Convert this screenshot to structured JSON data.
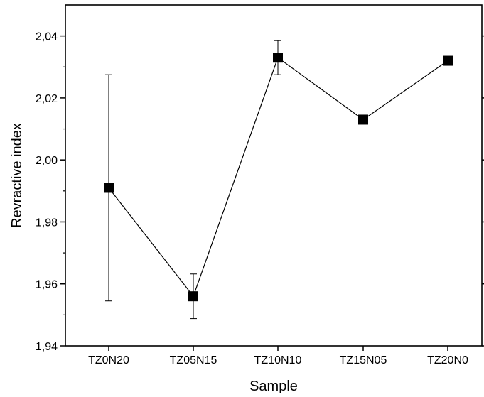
{
  "chart_data": {
    "type": "line",
    "title": "",
    "xlabel": "Sample",
    "ylabel": "Revractive index",
    "categories": [
      "TZ0N20",
      "TZ05N15",
      "TZ10N10",
      "TZ15N05",
      "TZ20N0"
    ],
    "ylim": [
      1.94,
      2.05
    ],
    "yticks": [
      {
        "value": 1.94,
        "label": "1,94"
      },
      {
        "value": 1.96,
        "label": "1,96"
      },
      {
        "value": 1.98,
        "label": "1,98"
      },
      {
        "value": 2.0,
        "label": "2,00"
      },
      {
        "value": 2.02,
        "label": "2,02"
      },
      {
        "value": 2.04,
        "label": "2,04"
      }
    ],
    "series": [
      {
        "values": [
          1.991,
          1.956,
          2.033,
          2.013,
          2.032
        ],
        "errors": [
          0.0365,
          0.0072,
          0.0055,
          0.0013,
          0.0012
        ],
        "marker": "square",
        "color": "#000000"
      }
    ],
    "grid": false,
    "legend": "none"
  }
}
